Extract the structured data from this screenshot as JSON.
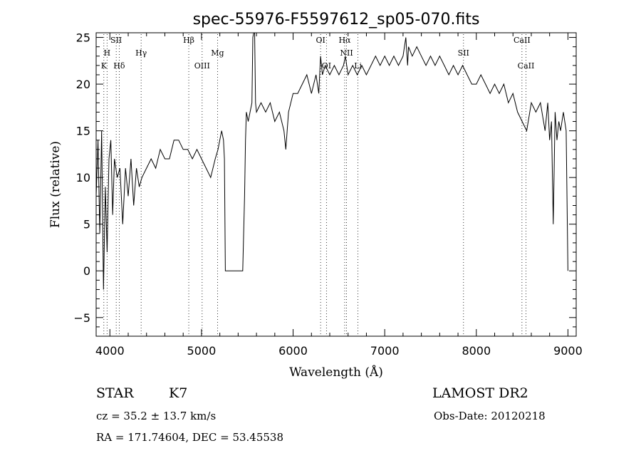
{
  "chart_data": {
    "type": "line",
    "title": "spec-55976-F5597612_sp05-070.fits",
    "xlabel": "Wavelength (Å)",
    "ylabel": "Flux (relative)",
    "xlim": [
      3850,
      9090
    ],
    "ylim": [
      -7,
      25.5
    ],
    "xticks": [
      4000,
      5000,
      6000,
      7000,
      8000,
      9000
    ],
    "yticks": [
      -5,
      0,
      5,
      10,
      15,
      20,
      25
    ],
    "grid": false,
    "legend": "none",
    "series": [
      {
        "x": [
          3850,
          3870,
          3890,
          3910,
          3930,
          3950,
          3970,
          3990,
          4010,
          4030,
          4050,
          4080,
          4110,
          4140,
          4170,
          4200,
          4230,
          4260,
          4290,
          4320,
          4350,
          4400,
          4450,
          4500,
          4550,
          4600,
          4650,
          4700,
          4750,
          4800,
          4850,
          4900,
          4950,
          5000,
          5050,
          5100,
          5150,
          5180,
          5200,
          5220,
          5240,
          5250,
          5260,
          5300,
          5350,
          5400,
          5450,
          5470,
          5480,
          5490,
          5510,
          5530,
          5550,
          5560,
          5570,
          5580,
          5590,
          5600,
          5650,
          5700,
          5750,
          5800,
          5850,
          5900,
          5920,
          5950,
          6000,
          6050,
          6100,
          6150,
          6200,
          6250,
          6280,
          6300,
          6320,
          6350,
          6400,
          6450,
          6500,
          6550,
          6570,
          6600,
          6650,
          6700,
          6750,
          6800,
          6850,
          6900,
          6950,
          7000,
          7050,
          7100,
          7150,
          7200,
          7230,
          7250,
          7260,
          7300,
          7350,
          7400,
          7450,
          7500,
          7550,
          7600,
          7650,
          7700,
          7750,
          7800,
          7850,
          7900,
          7950,
          8000,
          8050,
          8100,
          8150,
          8200,
          8250,
          8300,
          8350,
          8400,
          8450,
          8500,
          8550,
          8600,
          8650,
          8700,
          8750,
          8780,
          8800,
          8820,
          8840,
          8860,
          8880,
          8900,
          8920,
          8950,
          8980,
          9000
        ],
        "y": [
          8,
          14,
          4,
          15,
          -2,
          9,
          2,
          12,
          14,
          6,
          12,
          10,
          11,
          5,
          11,
          8,
          12,
          7,
          11,
          9,
          10,
          11,
          12,
          11,
          13,
          12,
          12,
          14,
          14,
          13,
          13,
          12,
          13,
          12,
          11,
          10,
          12,
          13,
          14,
          15,
          14,
          12,
          0,
          0,
          0,
          0,
          0,
          8,
          14,
          17,
          16,
          17,
          18,
          25,
          25.5,
          25.5,
          18,
          17,
          18,
          17,
          18,
          16,
          17,
          15,
          13,
          17,
          19,
          19,
          20,
          21,
          19,
          21,
          19,
          23,
          21,
          22,
          21,
          22,
          21,
          22,
          23,
          21,
          22,
          21,
          22,
          21,
          22,
          23,
          22,
          23,
          22,
          23,
          22,
          23,
          25,
          22,
          24,
          23,
          24,
          23,
          22,
          23,
          22,
          23,
          22,
          21,
          22,
          21,
          22,
          21,
          20,
          20,
          21,
          20,
          19,
          20,
          19,
          20,
          18,
          19,
          17,
          16,
          15,
          18,
          17,
          18,
          15,
          18,
          14,
          16,
          5,
          17,
          14,
          16,
          15,
          17,
          15,
          0
        ]
      }
    ],
    "line_labels": [
      {
        "text": "K",
        "x": 3934,
        "row": 3
      },
      {
        "text": "H",
        "x": 3969,
        "row": 2
      },
      {
        "text": "SII",
        "x": 4069,
        "row": 1
      },
      {
        "text": "Hδ",
        "x": 4102,
        "row": 3
      },
      {
        "text": "Hγ",
        "x": 4341,
        "row": 2
      },
      {
        "text": "Hβ",
        "x": 4861,
        "row": 1
      },
      {
        "text": "OIII",
        "x": 5007,
        "row": 3
      },
      {
        "text": "Mg",
        "x": 5175,
        "row": 2
      },
      {
        "text": "OI",
        "x": 6300,
        "row": 1
      },
      {
        "text": "OI",
        "x": 6364,
        "row": 3
      },
      {
        "text": "Hα",
        "x": 6563,
        "row": 1
      },
      {
        "text": "NII",
        "x": 6583,
        "row": 2
      },
      {
        "text": "Li",
        "x": 6708,
        "row": 3
      },
      {
        "text": "SII",
        "x": 7860,
        "row": 2
      },
      {
        "text": "CaII",
        "x": 8498,
        "row": 1
      },
      {
        "text": "CaII",
        "x": 8542,
        "row": 3
      }
    ]
  },
  "info": {
    "class": "STAR",
    "subclass": "K7",
    "survey": "LAMOST DR2",
    "cz": "cz = 35.2 ± 13.7 km/s",
    "obs_date": "Obs-Date: 20120218",
    "radec": "RA = 171.74604, DEC =  53.45538"
  }
}
